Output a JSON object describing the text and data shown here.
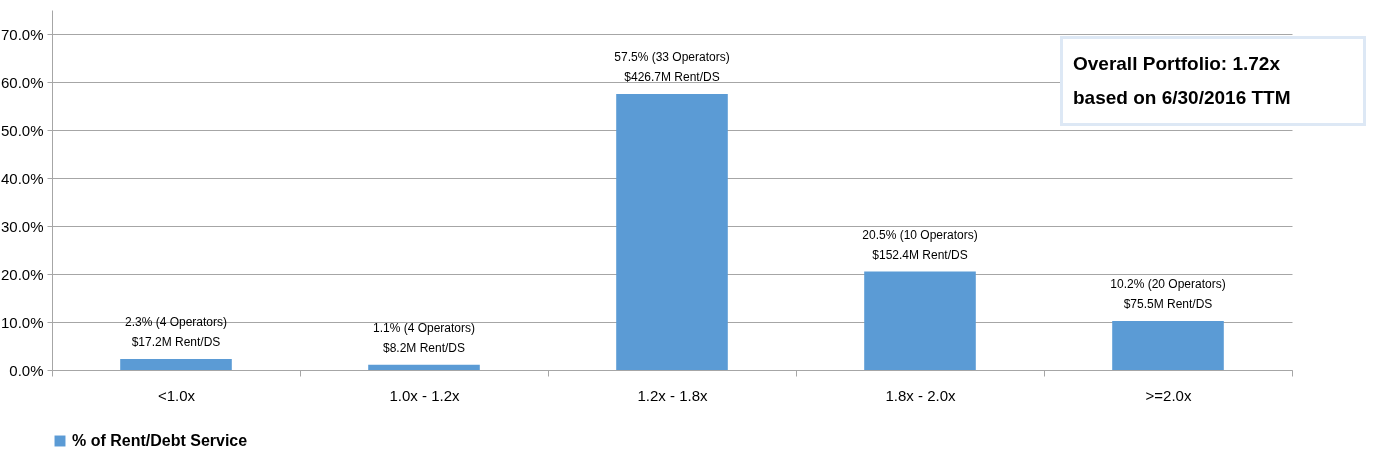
{
  "chart_data": {
    "type": "bar",
    "categories": [
      "<1.0x",
      "1.0x - 1.2x",
      "1.2x - 1.8x",
      "1.8x - 2.0x",
      ">=2.0x"
    ],
    "series": [
      {
        "name": "% of Rent/Debt Service",
        "color": "#5b9bd5",
        "values": [
          2.3,
          1.1,
          57.5,
          20.5,
          10.2
        ],
        "value_labels": [
          "2.3% (4 Operators)\n$17.2M Rent/DS",
          "1.1% (4 Operators)\n$8.2M Rent/DS",
          "57.5% (33 Operators)\n$426.7M Rent/DS",
          "20.5% (10 Operators)\n$152.4M Rent/DS",
          "10.2% (20 Operators)\n$75.5M Rent/DS"
        ]
      }
    ],
    "ylim": [
      0,
      75
    ],
    "yticks": [
      {
        "value": 0,
        "label": "0.0%"
      },
      {
        "value": 10,
        "label": "10.0%"
      },
      {
        "value": 20,
        "label": "20.0%"
      },
      {
        "value": 30,
        "label": "30.0%"
      },
      {
        "value": 40,
        "label": "40.0%"
      },
      {
        "value": 50,
        "label": "50.0%"
      },
      {
        "value": 60,
        "label": "60.0%"
      },
      {
        "value": 70,
        "label": "70.0%"
      }
    ],
    "grid": "y",
    "legend": "bottom",
    "annotations": [
      "Overall Portfolio:  1.72x",
      "based on 6/30/2016 TTM"
    ]
  }
}
